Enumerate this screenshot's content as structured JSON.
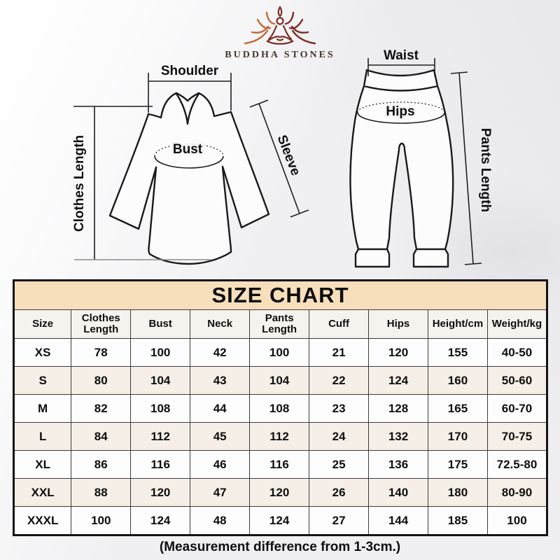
{
  "brand": {
    "name": "BUDDHA STONES"
  },
  "shirt_diagram": {
    "shoulder": "Shoulder",
    "clothes_length": "Clothes Length",
    "bust": "Bust",
    "sleeve": "Sleeve"
  },
  "pants_diagram": {
    "waist": "Waist",
    "hips": "Hips",
    "pants_length": "Pants Length"
  },
  "size_chart": {
    "title": "SIZE CHART",
    "columns": [
      "Size",
      "Clothes Length",
      "Bust",
      "Neck",
      "Pants Length",
      "Cuff",
      "Hips",
      "Height/cm",
      "Weight/kg"
    ],
    "rows": [
      [
        "XS",
        "78",
        "100",
        "42",
        "100",
        "21",
        "120",
        "155",
        "40-50"
      ],
      [
        "S",
        "80",
        "104",
        "43",
        "104",
        "22",
        "124",
        "160",
        "50-60"
      ],
      [
        "M",
        "82",
        "108",
        "44",
        "108",
        "23",
        "128",
        "165",
        "60-70"
      ],
      [
        "L",
        "84",
        "112",
        "45",
        "112",
        "24",
        "132",
        "170",
        "70-75"
      ],
      [
        "XL",
        "86",
        "116",
        "46",
        "116",
        "25",
        "136",
        "175",
        "72.5-80"
      ],
      [
        "XXL",
        "88",
        "120",
        "47",
        "120",
        "26",
        "140",
        "180",
        "80-90"
      ],
      [
        "XXXL",
        "100",
        "124",
        "48",
        "124",
        "27",
        "144",
        "185",
        "100"
      ]
    ]
  },
  "footer_note": "(Measurement difference from 1-3cm.)",
  "colors": {
    "title_bg": "#f8dfbc",
    "title_text": "#9c7b44",
    "row_alt_bg": "#f5efe7",
    "logo_orange": "#c06a38",
    "logo_maroon": "#7d2f26"
  },
  "chart_data": {
    "type": "table",
    "title": "SIZE CHART",
    "columns": [
      "Size",
      "Clothes Length",
      "Bust",
      "Neck",
      "Pants Length",
      "Cuff",
      "Hips",
      "Height/cm",
      "Weight/kg"
    ],
    "rows": [
      [
        "XS",
        "78",
        "100",
        "42",
        "100",
        "21",
        "120",
        "155",
        "40-50"
      ],
      [
        "S",
        "80",
        "104",
        "43",
        "104",
        "22",
        "124",
        "160",
        "50-60"
      ],
      [
        "M",
        "82",
        "108",
        "44",
        "108",
        "23",
        "128",
        "165",
        "60-70"
      ],
      [
        "L",
        "84",
        "112",
        "45",
        "112",
        "24",
        "132",
        "170",
        "70-75"
      ],
      [
        "XL",
        "86",
        "116",
        "46",
        "116",
        "25",
        "136",
        "175",
        "72.5-80"
      ],
      [
        "XXL",
        "88",
        "120",
        "47",
        "120",
        "26",
        "140",
        "180",
        "80-90"
      ],
      [
        "XXXL",
        "100",
        "124",
        "48",
        "124",
        "27",
        "144",
        "185",
        "100"
      ]
    ],
    "note": "(Measurement difference from 1-3cm.)"
  }
}
